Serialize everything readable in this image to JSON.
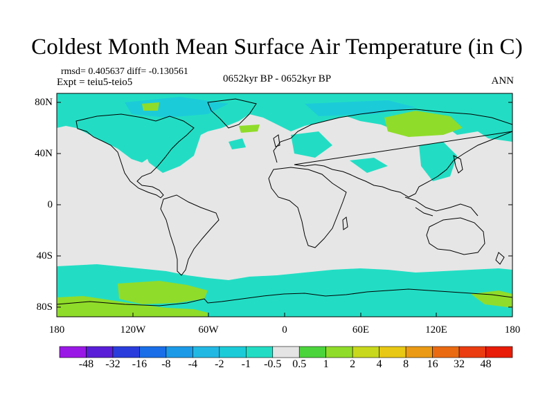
{
  "title": "Coldest Month Mean Surface Air Temperature (in C)",
  "stats_line": "rmsd= 0.405637 diff= -0.130561",
  "expt_line": "Expt = teiu5-teio5",
  "period_label": "0652kyr BP - 0652kyr BP",
  "season_label": "ANN",
  "lat_labels": [
    "80N",
    "40N",
    "0",
    "40S",
    "80S"
  ],
  "lon_labels": [
    "180",
    "120W",
    "60W",
    "0",
    "60E",
    "120E",
    "180"
  ],
  "colorbar": {
    "labels": [
      "-48",
      "-32",
      "-16",
      "-8",
      "-4",
      "-2",
      "-1",
      "-0.5",
      "0.5",
      "1",
      "2",
      "4",
      "8",
      "16",
      "32",
      "48"
    ],
    "colors": [
      "#9a18e6",
      "#5a1ed8",
      "#2a3cdc",
      "#1a6ee8",
      "#1c9ae8",
      "#22b8e4",
      "#1ccbd8",
      "#22ddc4",
      "#e4e4e4",
      "#4cd43c",
      "#90dc2a",
      "#c8d81c",
      "#e8c814",
      "#ea9a14",
      "#ea6a12",
      "#ea3c10",
      "#e81c08"
    ]
  },
  "map": {
    "background_color": "#e6e6e6",
    "cool_color": "#22ddc4",
    "cooler_color": "#1ccbd8",
    "warm_color": "#90dc2a",
    "coast_color": "#000000"
  }
}
